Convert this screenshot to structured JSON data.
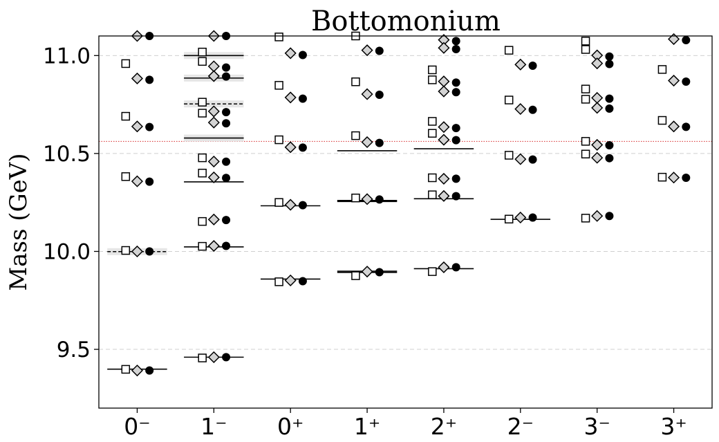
{
  "chart_data": {
    "type": "scatter",
    "title": "Bottomonium",
    "xlabel": "",
    "ylabel": "Mass (GeV)",
    "ylim": [
      9.2,
      11.1
    ],
    "xlim": [
      -0.5,
      7.5
    ],
    "yticks": [
      9.5,
      10.0,
      10.5,
      11.0
    ],
    "ytick_labels": [
      "9.5",
      "10.0",
      "10.5",
      "11.0"
    ],
    "categories": [
      "0⁻",
      "1⁻",
      "0⁺",
      "1⁺",
      "2⁺",
      "2⁻",
      "3⁻",
      "3⁺"
    ],
    "grid": "horizontal dashed at y ticks",
    "threshold_line": {
      "value": 10.562,
      "color": "#d62728",
      "style": "dotted"
    },
    "series": [
      {
        "marker": "square",
        "fill": "#ffffff",
        "offset": -0.15,
        "values": [
          [
            10.959,
            10.69,
            10.382,
            10.005,
            9.398
          ],
          [
            11.018,
            10.97,
            10.762,
            10.706,
            10.478,
            10.4,
            10.153,
            10.026,
            9.456
          ],
          [
            11.095,
            10.848,
            10.57,
            10.25,
            9.845
          ],
          [
            11.1,
            10.866,
            10.591,
            10.273,
            9.876
          ],
          [
            10.927,
            10.876,
            10.664,
            10.603,
            10.376,
            10.289,
            9.897
          ],
          [
            11.027,
            10.773,
            10.491,
            10.165
          ],
          [
            11.074,
            11.031,
            10.829,
            10.777,
            10.562,
            10.497,
            10.17
          ],
          [
            10.929,
            10.669,
            10.379
          ]
        ]
      },
      {
        "marker": "diamond",
        "fill": "#d3d3d3",
        "offset": 0.0,
        "values": [
          [
            11.1,
            10.883,
            10.638,
            10.358,
            10.0,
            9.392
          ],
          [
            11.1,
            10.945,
            10.895,
            10.715,
            10.658,
            10.459,
            10.378,
            10.163,
            10.028,
            9.46
          ],
          [
            11.012,
            10.786,
            10.532,
            10.238,
            9.852
          ],
          [
            11.027,
            10.803,
            10.558,
            10.267,
            9.897
          ],
          [
            11.08,
            11.039,
            10.868,
            10.817,
            10.635,
            10.57,
            10.371,
            10.283,
            9.919
          ],
          [
            10.954,
            10.727,
            10.471,
            10.173
          ],
          [
            11.001,
            10.96,
            10.784,
            10.733,
            10.544,
            10.478,
            10.181
          ],
          [
            11.084,
            10.872,
            10.638,
            10.377
          ]
        ]
      },
      {
        "marker": "circle",
        "fill": "#000000",
        "offset": 0.16,
        "values": [
          [
            11.1,
            10.876,
            10.635,
            10.356,
            10.0,
            9.392
          ],
          [
            11.1,
            10.939,
            10.893,
            10.711,
            10.654,
            10.458,
            10.375,
            10.16,
            10.028,
            9.46
          ],
          [
            11.003,
            10.78,
            10.53,
            10.236,
            9.848
          ],
          [
            11.024,
            10.8,
            10.554,
            10.265,
            9.894
          ],
          [
            11.074,
            11.033,
            10.862,
            10.813,
            10.63,
            10.568,
            10.371,
            10.282,
            9.919
          ],
          [
            10.948,
            10.723,
            10.469,
            10.173
          ],
          [
            10.995,
            10.957,
            10.78,
            10.729,
            10.542,
            10.476,
            10.181
          ],
          [
            11.079,
            10.867,
            10.636,
            10.376
          ]
        ]
      }
    ],
    "experiment_lines": [
      {
        "category": 0,
        "value": 9.399,
        "style": "solid",
        "band": false
      },
      {
        "category": 0,
        "value": 9.999,
        "style": "dashed",
        "band": true
      },
      {
        "category": 1,
        "value": 9.46,
        "style": "solid",
        "band": false
      },
      {
        "category": 1,
        "value": 10.023,
        "style": "solid",
        "band": false
      },
      {
        "category": 1,
        "value": 10.355,
        "style": "solid",
        "band": false
      },
      {
        "category": 1,
        "value": 10.579,
        "style": "solid",
        "band": true
      },
      {
        "category": 1,
        "value": 10.753,
        "style": "dashed",
        "band": true
      },
      {
        "category": 1,
        "value": 10.885,
        "style": "solid",
        "band": true
      },
      {
        "category": 1,
        "value": 11.0,
        "style": "solid",
        "band": true
      },
      {
        "category": 2,
        "value": 9.859,
        "style": "solid",
        "band": false
      },
      {
        "category": 2,
        "value": 10.233,
        "style": "solid",
        "band": false
      },
      {
        "category": 3,
        "value": 9.893,
        "style": "solid",
        "band": false
      },
      {
        "category": 3,
        "value": 9.899,
        "style": "solid",
        "band": false
      },
      {
        "category": 3,
        "value": 10.255,
        "style": "solid",
        "band": false
      },
      {
        "category": 3,
        "value": 10.26,
        "style": "solid",
        "band": false
      },
      {
        "category": 3,
        "value": 10.514,
        "style": "solid",
        "band": false
      },
      {
        "category": 4,
        "value": 9.912,
        "style": "solid",
        "band": false
      },
      {
        "category": 4,
        "value": 10.269,
        "style": "solid",
        "band": false
      },
      {
        "category": 4,
        "value": 10.524,
        "style": "solid",
        "band": false
      },
      {
        "category": 5,
        "value": 10.164,
        "style": "solid",
        "band": false
      }
    ]
  }
}
